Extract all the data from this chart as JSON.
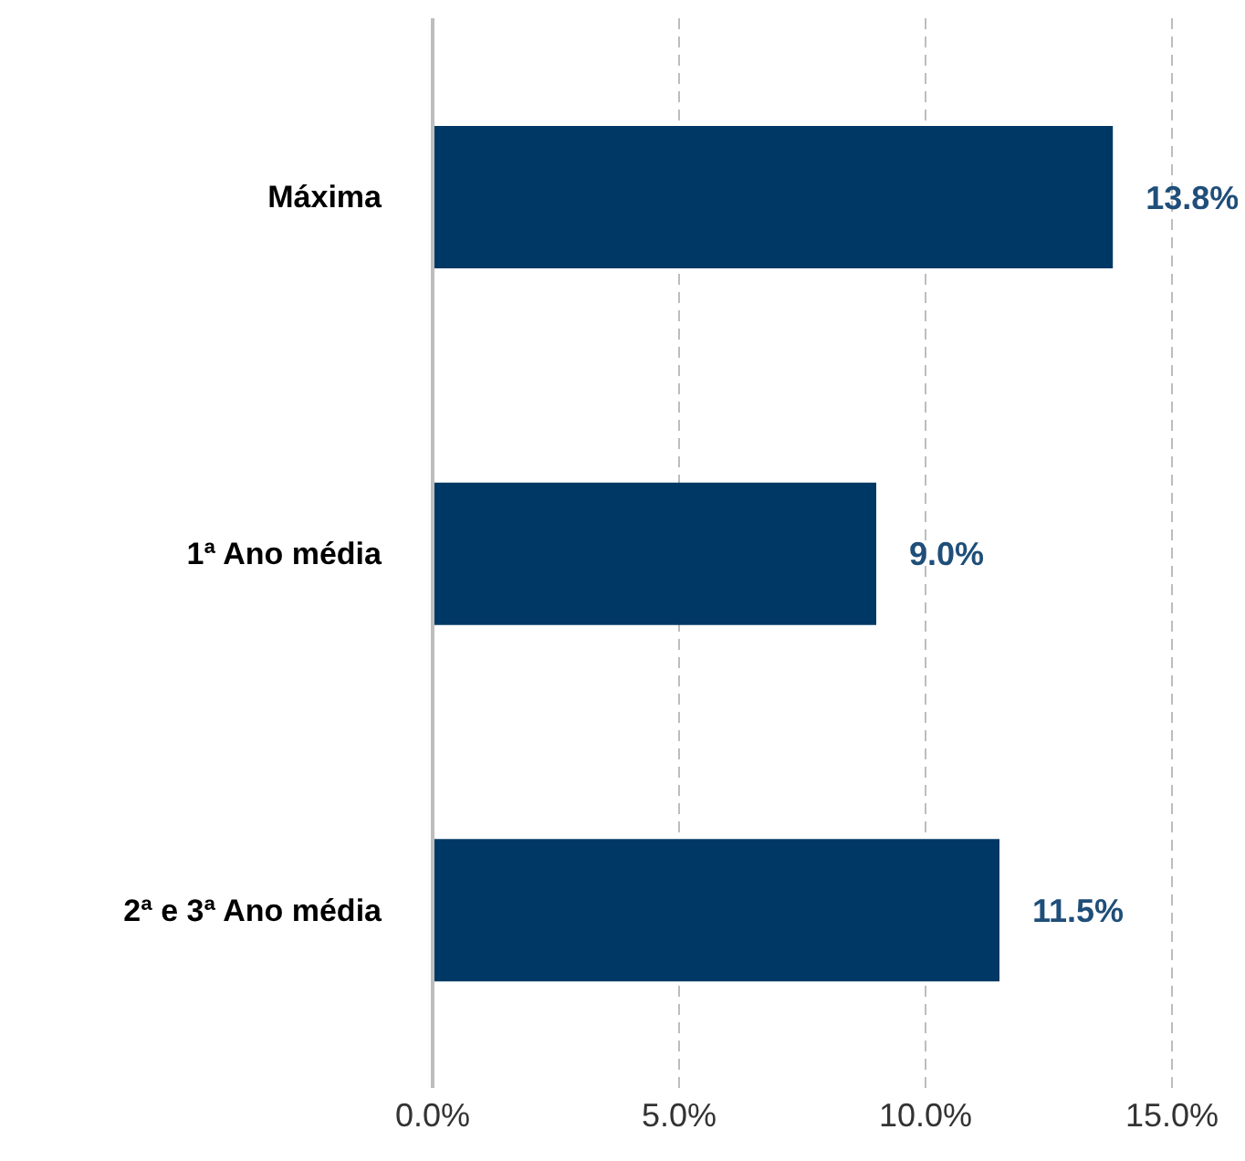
{
  "chart_data": {
    "type": "bar",
    "orientation": "horizontal",
    "categories": [
      "Máxima",
      "1ª Ano média",
      "2ª e 3ª Ano média"
    ],
    "values": [
      13.8,
      9.0,
      11.5
    ],
    "value_labels": [
      "13.8%",
      "9.0%",
      "11.5%"
    ],
    "color": "#003865",
    "xlim": [
      0,
      15
    ],
    "xticks": [
      {
        "value": 0,
        "label": "0.0%"
      },
      {
        "value": 5,
        "label": "5.0%"
      },
      {
        "value": 10,
        "label": "10.0%"
      },
      {
        "value": 15,
        "label": "15.0%"
      }
    ],
    "grid": "x",
    "legend": false
  }
}
